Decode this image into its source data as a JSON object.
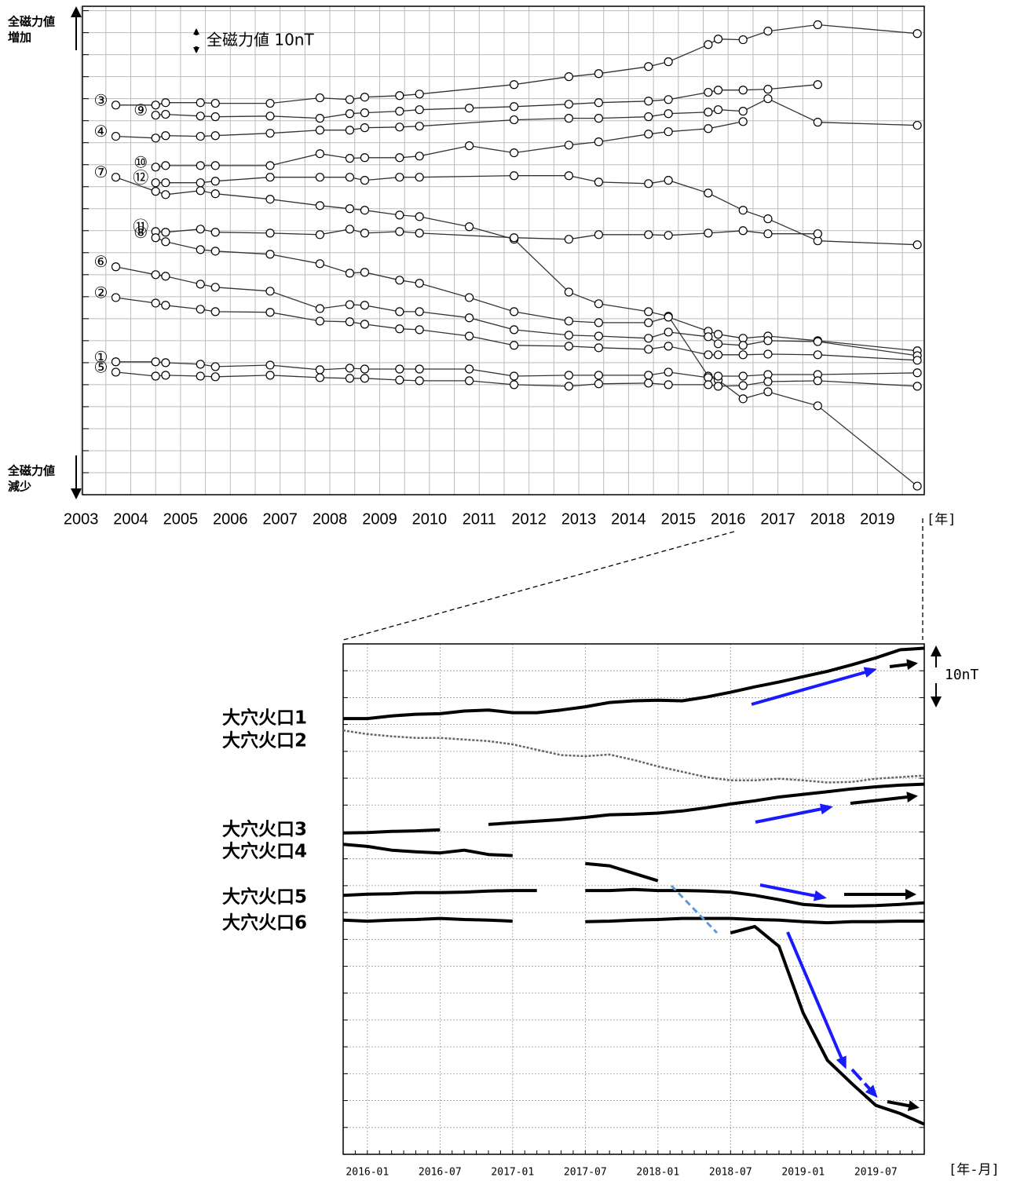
{
  "chart_data": [
    {
      "type": "line",
      "y_label_top": [
        "全磁力値",
        "増加"
      ],
      "y_label_bottom": [
        "全磁力値",
        "減少"
      ],
      "scale_label": "全磁力値 10nT",
      "x_unit": "[年]",
      "xlim": [
        2003.03,
        2019.94
      ],
      "ylim": [
        0,
        222
      ],
      "xticks": [
        2003,
        2004,
        2005,
        2006,
        2007,
        2008,
        2009,
        2010,
        2011,
        2012,
        2013,
        2014,
        2015,
        2016,
        2017,
        2018,
        2019
      ],
      "yticks": [
        0,
        10,
        20,
        30,
        40,
        50,
        60,
        70,
        80,
        90,
        100,
        110,
        120,
        130,
        140,
        150,
        160,
        170,
        180,
        190,
        200,
        210,
        220
      ],
      "grid": true,
      "series": [
        {
          "name": "③",
          "color": "#333333",
          "x": [
            2003.7,
            2004.5,
            2004.7,
            2005.4,
            2005.7,
            2006.8,
            2007.8,
            2008.4,
            2008.7,
            2009.4,
            2009.8,
            2011.7,
            2012.8,
            2013.4,
            2014.4,
            2014.8,
            2015.6,
            2015.8,
            2016.3,
            2016.8,
            2017.8,
            2019.8
          ],
          "values": [
            177.1,
            177.1,
            178.2,
            178.2,
            177.9,
            177.9,
            180.4,
            179.6,
            180.7,
            181.4,
            182.1,
            186.4,
            190,
            191.4,
            194.6,
            196.8,
            204.6,
            207.1,
            206.8,
            210.7,
            213.6,
            209.6
          ]
        },
        {
          "name": "⑨",
          "color": "#333333",
          "x": [
            2004.5,
            2004.7,
            2005.4,
            2005.7,
            2006.8,
            2007.8,
            2008.4,
            2008.7,
            2009.4,
            2009.8,
            2010.8,
            2011.7,
            2012.8,
            2013.4,
            2014.4,
            2014.8,
            2015.6,
            2015.8,
            2016.3,
            2016.8,
            2017.8
          ],
          "values": [
            172.5,
            172.9,
            172.1,
            171.8,
            172.1,
            171.1,
            173.2,
            173.6,
            174.3,
            175,
            175.7,
            176.4,
            177.5,
            178.2,
            178.9,
            179.6,
            182.9,
            183.9,
            183.9,
            184.3,
            186.4
          ]
        },
        {
          "name": "④",
          "color": "#333333",
          "x": [
            2003.7,
            2004.5,
            2004.7,
            2005.4,
            2005.7,
            2006.8,
            2007.8,
            2008.4,
            2008.7,
            2009.4,
            2009.8,
            2011.7,
            2012.8,
            2013.4,
            2014.4,
            2014.8,
            2015.6,
            2015.8,
            2016.3,
            2016.8,
            2017.8,
            2019.8
          ],
          "values": [
            162.9,
            162.1,
            163.2,
            162.9,
            163.2,
            164.3,
            165.7,
            165.7,
            166.8,
            167.1,
            167.5,
            170.4,
            171.1,
            171.1,
            171.8,
            173.2,
            173.9,
            175,
            174.3,
            180,
            169.3,
            167.9
          ]
        },
        {
          "name": "⑩",
          "color": "#333333",
          "x": [
            2004.5,
            2004.7,
            2005.4,
            2005.7,
            2006.8,
            2007.8,
            2008.4,
            2008.7,
            2009.4,
            2009.8,
            2010.8,
            2011.7,
            2012.8,
            2013.4,
            2014.4,
            2014.8,
            2015.6,
            2016.3
          ],
          "values": [
            148.9,
            149.6,
            149.6,
            149.6,
            149.6,
            155,
            152.9,
            153.2,
            153.2,
            153.9,
            158.6,
            155.4,
            158.9,
            160.4,
            163.9,
            165,
            166.4,
            169.6
          ]
        },
        {
          "name": "⑦",
          "color": "#333333",
          "x": [
            2003.7,
            2004.5,
            2004.7,
            2005.4,
            2005.7,
            2006.8,
            2007.8,
            2008.4,
            2008.7,
            2009.4,
            2009.8,
            2010.8,
            2011.7,
            2012.8,
            2013.4,
            2014.4,
            2014.8,
            2015.6,
            2015.8,
            2016.3,
            2016.8,
            2017.8,
            2019.8
          ],
          "values": [
            144.3,
            137.9,
            136.4,
            138.2,
            136.8,
            134.3,
            131.4,
            130,
            129.3,
            127.1,
            126.4,
            121.8,
            116.1,
            92.1,
            86.8,
            83.2,
            81.1,
            53.9,
            52.1,
            43.6,
            46.8,
            40.4,
            3.9
          ]
        },
        {
          "name": "⑫",
          "color": "#333333",
          "x": [
            2004.5,
            2004.7,
            2005.4,
            2005.7,
            2006.8,
            2007.8,
            2008.4,
            2008.7,
            2009.4,
            2009.8,
            2011.7,
            2012.8,
            2013.4,
            2014.4,
            2014.8,
            2015.6,
            2016.3,
            2016.8,
            2017.8,
            2019.8
          ],
          "values": [
            141.8,
            141.8,
            141.8,
            142.5,
            144.3,
            144.3,
            144.3,
            142.9,
            144.3,
            144.3,
            145,
            145,
            142.1,
            141.4,
            142.9,
            137.1,
            129.3,
            125.4,
            115.4,
            113.6
          ]
        },
        {
          "name": "⑪",
          "color": "#333333",
          "x": [
            2004.5,
            2004.7,
            2005.4,
            2005.7,
            2006.8,
            2007.8,
            2008.4,
            2008.7,
            2009.4,
            2009.8,
            2011.7,
            2012.8,
            2013.4,
            2014.4,
            2014.8,
            2015.6,
            2016.3,
            2016.8,
            2017.8
          ],
          "values": [
            119.6,
            119.3,
            120.7,
            119.3,
            118.9,
            118.2,
            120.7,
            118.9,
            119.6,
            118.9,
            116.8,
            116.1,
            118.2,
            118.2,
            117.9,
            118.9,
            120,
            118.6,
            118.6
          ]
        },
        {
          "name": "⑧",
          "color": "#333333",
          "x": [
            2004.5,
            2004.7,
            2005.4,
            2005.7,
            2006.8,
            2007.8,
            2008.4,
            2008.7,
            2009.4,
            2009.8,
            2010.8,
            2011.7,
            2012.8,
            2013.4,
            2014.4,
            2014.8,
            2015.6,
            2015.8,
            2016.3,
            2016.8,
            2017.8,
            2019.8
          ],
          "values": [
            116.8,
            115,
            111.4,
            110.7,
            109.3,
            105,
            100.7,
            101.1,
            97.5,
            96.1,
            89.6,
            83.2,
            78.9,
            78.2,
            78.2,
            80.7,
            74.3,
            72.9,
            71.1,
            72.1,
            70,
            65.4
          ]
        },
        {
          "name": "⑥",
          "color": "#333333",
          "x": [
            2003.7,
            2004.5,
            2004.7,
            2005.4,
            2005.7,
            2006.8,
            2007.8,
            2008.4,
            2008.7,
            2009.4,
            2009.8,
            2010.8,
            2011.7,
            2012.8,
            2013.4,
            2014.4,
            2014.8,
            2015.6,
            2015.8,
            2016.3,
            2016.8,
            2017.8,
            2019.8
          ],
          "values": [
            103.6,
            100,
            99.3,
            95.7,
            94.3,
            92.5,
            84.6,
            86.4,
            86.1,
            83.2,
            83.2,
            80.4,
            75,
            72.5,
            72.1,
            71.1,
            73.9,
            71.8,
            68.6,
            67.9,
            70,
            69.6,
            63.2
          ]
        },
        {
          "name": "②",
          "color": "#333333",
          "x": [
            2003.7,
            2004.5,
            2004.7,
            2005.4,
            2005.7,
            2006.8,
            2007.8,
            2008.4,
            2008.7,
            2009.4,
            2009.8,
            2010.8,
            2011.7,
            2012.8,
            2013.4,
            2014.4,
            2014.8,
            2015.6,
            2015.8,
            2016.3,
            2016.8,
            2017.8,
            2019.8
          ],
          "values": [
            89.6,
            87.1,
            86.1,
            84.3,
            83.2,
            82.9,
            78.9,
            78.6,
            77.5,
            75.4,
            75,
            72.1,
            67.9,
            67.5,
            66.8,
            66.1,
            67.5,
            63.6,
            63.6,
            63.6,
            63.9,
            63.6,
            61.1
          ]
        },
        {
          "name": "①",
          "color": "#333333",
          "x": [
            2003.7,
            2004.5,
            2004.7,
            2005.4,
            2005.7,
            2006.8,
            2007.8,
            2008.4,
            2008.7,
            2009.4,
            2009.8,
            2010.8,
            2011.7,
            2012.8,
            2013.4,
            2014.4,
            2014.8,
            2015.6,
            2015.8,
            2016.3,
            2016.8,
            2017.8,
            2019.8
          ],
          "values": [
            60.4,
            60.4,
            60,
            59.3,
            58.2,
            58.9,
            56.8,
            57.5,
            57.1,
            57.1,
            57.1,
            57.1,
            53.9,
            54.3,
            54.3,
            54.3,
            55.7,
            53.2,
            53.9,
            53.9,
            54.6,
            54.6,
            55.4
          ]
        },
        {
          "name": "⑤",
          "color": "#333333",
          "x": [
            2003.7,
            2004.5,
            2004.7,
            2005.4,
            2005.7,
            2006.8,
            2007.8,
            2008.4,
            2008.7,
            2009.4,
            2009.8,
            2010.8,
            2011.7,
            2012.8,
            2013.4,
            2014.4,
            2014.8,
            2015.6,
            2015.8,
            2016.3,
            2016.8,
            2017.8,
            2019.8
          ],
          "values": [
            55.7,
            53.9,
            54.3,
            53.9,
            53.6,
            54.3,
            53.2,
            52.9,
            52.9,
            52.1,
            51.8,
            51.8,
            50,
            49.3,
            50.4,
            50.7,
            50,
            50,
            49.3,
            49.6,
            51.4,
            51.8,
            49.3
          ]
        }
      ]
    },
    {
      "type": "line",
      "scale_label": "10nT",
      "x_unit": "[年-月]",
      "xlim": [
        "2015-11",
        "2019-11"
      ],
      "ylim": [
        0,
        95
      ],
      "xticks": [
        "2016-01",
        "2016-07",
        "2017-01",
        "2017-07",
        "2018-01",
        "2018-07",
        "2019-01",
        "2019-07"
      ],
      "yticks": [
        0,
        5,
        10,
        15,
        20,
        25,
        30,
        35,
        40,
        45,
        50,
        55,
        60,
        65,
        70,
        75,
        80,
        85,
        90,
        95
      ],
      "grid": true,
      "x": [
        "2015-11",
        "2016-01",
        "2016-03",
        "2016-05",
        "2016-07",
        "2016-09",
        "2016-11",
        "2017-01",
        "2017-03",
        "2017-05",
        "2017-07",
        "2017-09",
        "2017-11",
        "2018-01",
        "2018-03",
        "2018-05",
        "2018-07",
        "2018-09",
        "2018-11",
        "2019-01",
        "2019-03",
        "2019-05",
        "2019-07",
        "2019-09",
        "2019-11"
      ],
      "series": [
        {
          "name": "大穴火口1",
          "color": "#000000",
          "values": [
            81.1,
            81.1,
            81.6,
            81.9,
            82,
            82.5,
            82.7,
            82.2,
            82.2,
            82.7,
            83.3,
            84.1,
            84.4,
            84.5,
            84.4,
            85.1,
            86,
            87,
            87.9,
            88.9,
            89.9,
            91.1,
            92.4,
            93.9,
            94.2
          ]
        },
        {
          "name": "大穴火口2",
          "color": "#666666",
          "values": [
            78.9,
            78.2,
            77.8,
            77.5,
            77.5,
            77.2,
            76.9,
            76.3,
            75.3,
            74.3,
            74.1,
            74.4,
            73.4,
            72.2,
            71.2,
            70.2,
            69.6,
            69.6,
            69.9,
            69.6,
            69.2,
            69.3,
            69.9,
            70.2,
            70.5
          ]
        },
        {
          "name": "大穴火口3",
          "color": "#000000",
          "values": [
            59.8,
            59.9,
            60.1,
            60.2,
            60.4,
            null,
            61.4,
            61.7,
            62,
            62.3,
            62.7,
            63.2,
            63.3,
            63.5,
            63.9,
            64.5,
            65.2,
            65.8,
            66.5,
            67,
            67.5,
            68,
            68.4,
            68.7,
            68.9
          ]
        },
        {
          "name": "大穴火口4",
          "color": "#000000",
          "values": [
            57.7,
            57.3,
            56.6,
            56.3,
            56.1,
            56.6,
            55.8,
            55.6,
            null,
            null,
            54.1,
            53.7,
            52.3,
            50.9,
            null,
            null,
            41.2,
            42.4,
            38.7,
            26.3,
            17.5,
            13.2,
            9.1,
            7.6,
            5.6
          ]
        },
        {
          "name": "大穴火口5",
          "color": "#000000",
          "values": [
            48.2,
            48.4,
            48.5,
            48.7,
            48.7,
            48.8,
            49,
            49.1,
            49.1,
            null,
            49.1,
            49.1,
            49.3,
            49.1,
            49.1,
            49,
            48.8,
            48.2,
            47.4,
            46.5,
            46.2,
            46.2,
            46.3,
            46.5,
            46.8
          ]
        },
        {
          "name": "大穴火口6",
          "color": "#000000",
          "values": [
            43.6,
            43.4,
            43.6,
            43.7,
            43.9,
            43.7,
            43.6,
            43.4,
            null,
            null,
            43.3,
            43.4,
            43.6,
            43.7,
            43.9,
            43.9,
            43.9,
            43.7,
            43.6,
            43.3,
            43.1,
            43.3,
            43.3,
            43.4,
            43.4
          ]
        }
      ]
    }
  ]
}
